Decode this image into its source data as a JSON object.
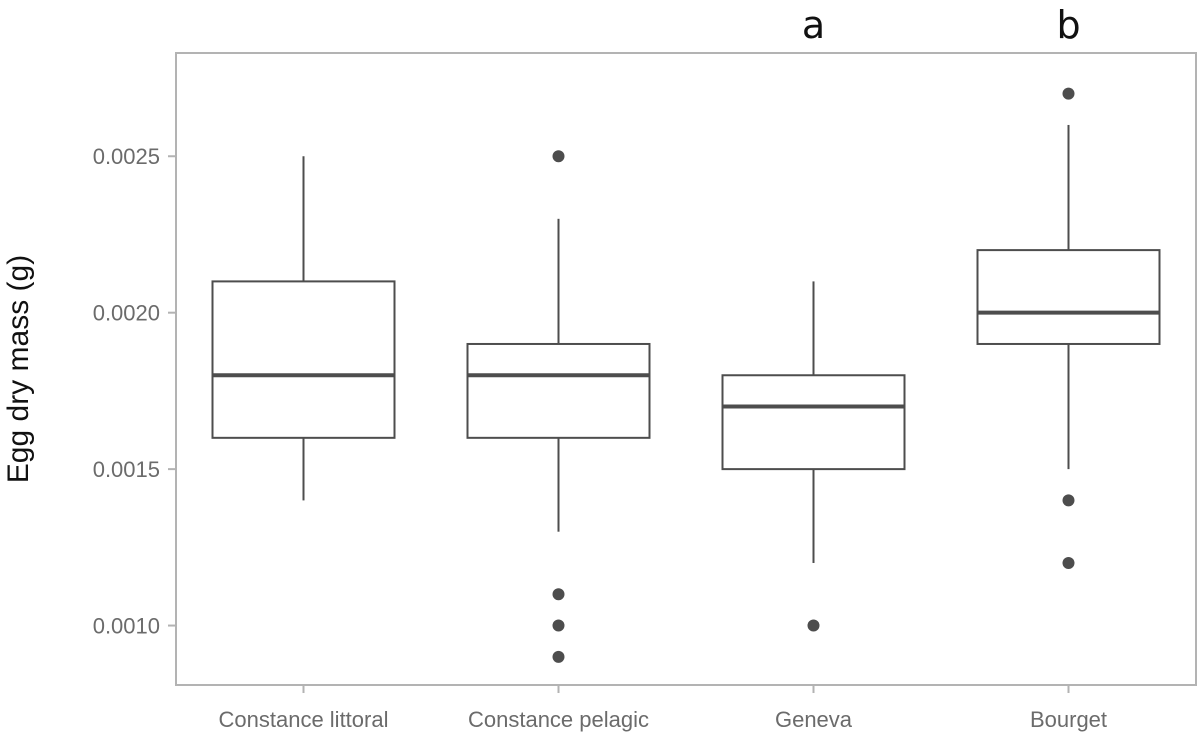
{
  "chart_data": {
    "type": "box",
    "title": "",
    "xlabel": "",
    "ylabel": "Egg dry mass (g)",
    "ylim": [
      0.00081,
      0.00283
    ],
    "yticks": [
      "0.0010",
      "0.0015",
      "0.0020",
      "0.0025"
    ],
    "ytick_values": [
      0.001,
      0.0015,
      0.002,
      0.0025
    ],
    "grid": false,
    "categories": [
      "Constance littoral",
      "Constance pelagic",
      "Geneva",
      "Bourget"
    ],
    "boxes": [
      {
        "category": "Constance littoral",
        "whisker_low": 0.0014,
        "q1": 0.0016,
        "median": 0.0018,
        "q3": 0.0021,
        "whisker_high": 0.0025,
        "outliers": []
      },
      {
        "category": "Constance pelagic",
        "whisker_low": 0.0013,
        "q1": 0.0016,
        "median": 0.0018,
        "q3": 0.0019,
        "whisker_high": 0.0023,
        "outliers": [
          0.0025,
          0.0011,
          0.001,
          0.0009
        ]
      },
      {
        "category": "Geneva",
        "whisker_low": 0.0012,
        "q1": 0.0015,
        "median": 0.0017,
        "q3": 0.0018,
        "whisker_high": 0.0021,
        "outliers": [
          0.001
        ]
      },
      {
        "category": "Bourget",
        "whisker_low": 0.0015,
        "q1": 0.0019,
        "median": 0.002,
        "q3": 0.0022,
        "whisker_high": 0.0026,
        "outliers": [
          0.0027,
          0.0014,
          0.0012
        ]
      }
    ],
    "annotations": [
      {
        "category": "Geneva",
        "text": "a"
      },
      {
        "category": "Bourget",
        "text": "b"
      }
    ],
    "colors": {
      "box": "#4d4d4d",
      "point": "#4d4d4d",
      "frame": "#b3b3b3",
      "tick_text": "#6b6b6b"
    }
  }
}
